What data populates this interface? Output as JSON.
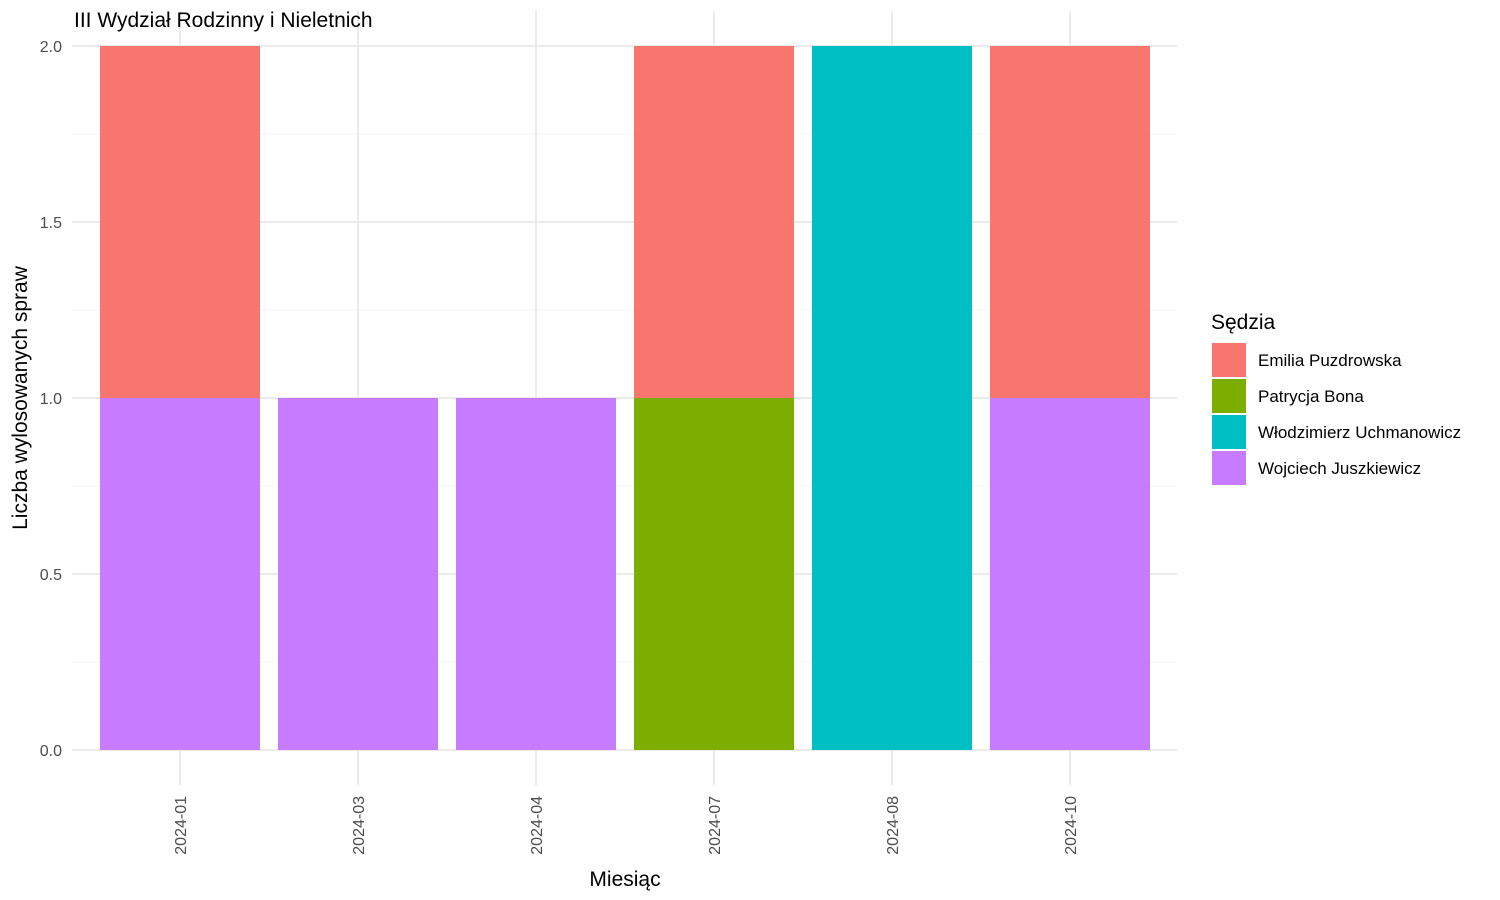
{
  "chart_data": {
    "type": "bar",
    "stacked": true,
    "title": "III Wydział Rodzinny i Nieletnich",
    "xlabel": "Miesiąc",
    "ylabel": "Liczba wylosowanych spraw",
    "ylim": [
      0,
      2
    ],
    "y_ticks": [
      "0.0",
      "0.5",
      "1.0",
      "1.5",
      "2.0"
    ],
    "categories": [
      "2024-01",
      "2024-03",
      "2024-04",
      "2024-07",
      "2024-08",
      "2024-10"
    ],
    "grid": true,
    "legend": {
      "title": "Sędzia",
      "position": "right"
    },
    "stack_order": [
      "Wojciech Juszkiewicz",
      "Patrycja Bona",
      "Włodzimierz Uchmanowicz",
      "Emilia Puzdrowska"
    ],
    "series": [
      {
        "name": "Emilia Puzdrowska",
        "color": "#F8766D",
        "values": [
          1,
          0,
          0,
          1,
          0,
          1
        ]
      },
      {
        "name": "Patrycja Bona",
        "color": "#7CAE00",
        "values": [
          0,
          0,
          0,
          1,
          0,
          0
        ]
      },
      {
        "name": "Włodzimierz Uchmanowicz",
        "color": "#00BFC4",
        "values": [
          0,
          0,
          0,
          0,
          2,
          0
        ]
      },
      {
        "name": "Wojciech Juszkiewicz",
        "color": "#C77CFF",
        "values": [
          1,
          1,
          1,
          0,
          0,
          1
        ]
      }
    ]
  }
}
